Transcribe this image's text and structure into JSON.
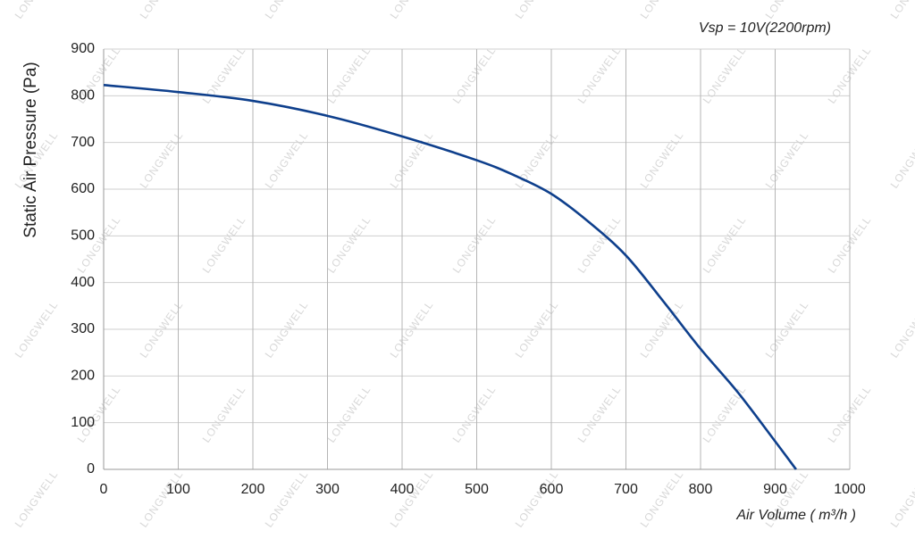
{
  "chart_data": {
    "type": "line",
    "annotation": "Vsp = 10V(2200rpm)",
    "xlabel": "Air Volume ( m³/h )",
    "ylabel": "Static Air Pressure  (Pa)",
    "watermark": "LONGWELL",
    "x": [
      0,
      100,
      200,
      300,
      400,
      500,
      550,
      600,
      650,
      700,
      750,
      800,
      850,
      900,
      928
    ],
    "series": [
      {
        "name": "Vsp = 10V(2200rpm)",
        "color": "#0e3f8c",
        "values": [
          823,
          808,
          789,
          757,
          713,
          662,
          630,
          590,
          530,
          458,
          360,
          258,
          165,
          60,
          0
        ]
      }
    ],
    "xlim": [
      0,
      1000
    ],
    "xticks": [
      0,
      100,
      200,
      300,
      400,
      500,
      600,
      700,
      800,
      900,
      1000
    ],
    "ylim": [
      0,
      900
    ],
    "yticks": [
      0,
      100,
      200,
      300,
      400,
      500,
      600,
      700,
      800,
      900
    ],
    "grid": true
  }
}
